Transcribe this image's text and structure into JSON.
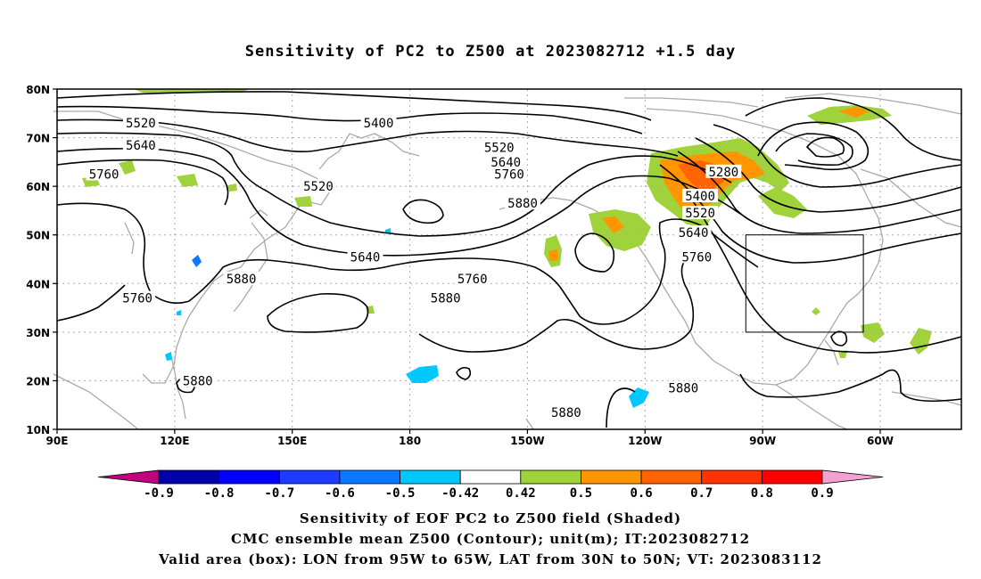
{
  "title": "Sensitivity of PC2 to Z500 at 2023082712 +1.5 day",
  "map": {
    "lat_ticks": [
      "80N",
      "70N",
      "60N",
      "50N",
      "40N",
      "30N",
      "20N",
      "10N"
    ],
    "lon_ticks": [
      "90E",
      "120E",
      "150E",
      "180",
      "150W",
      "120W",
      "90W",
      "60W"
    ],
    "contour_labels": [
      {
        "text": "5520",
        "lon": 115,
        "lat": 73
      },
      {
        "text": "5400",
        "lon": 186,
        "lat": 73
      },
      {
        "text": "5640",
        "lon": 115,
        "lat": 68.5
      },
      {
        "text": "5520",
        "lon": 222,
        "lat": 68
      },
      {
        "text": "5640",
        "lon": 224,
        "lat": 65
      },
      {
        "text": "5760",
        "lon": 104,
        "lat": 62.5
      },
      {
        "text": "5760",
        "lon": 225,
        "lat": 62.5
      },
      {
        "text": "5520",
        "lon": 168,
        "lat": 60
      },
      {
        "text": "5880",
        "lon": 229,
        "lat": 56.5
      },
      {
        "text": "5280",
        "lon": 289,
        "lat": 63
      },
      {
        "text": "5400",
        "lon": 282,
        "lat": 58
      },
      {
        "text": "5520",
        "lon": 282,
        "lat": 54.5
      },
      {
        "text": "5640",
        "lon": 280,
        "lat": 50.5
      },
      {
        "text": "5760",
        "lon": 281,
        "lat": 45.5
      },
      {
        "text": "5640",
        "lon": 182,
        "lat": 45.5
      },
      {
        "text": "5760",
        "lon": 214,
        "lat": 41
      },
      {
        "text": "5880",
        "lon": 145,
        "lat": 41
      },
      {
        "text": "5880",
        "lon": 206,
        "lat": 37
      },
      {
        "text": "5760",
        "lon": 114,
        "lat": 37
      },
      {
        "text": "5880",
        "lon": 132,
        "lat": 20
      },
      {
        "text": "5880",
        "lon": 277,
        "lat": 18.5
      },
      {
        "text": "5880",
        "lon": 242,
        "lat": 13.5
      }
    ],
    "box": {
      "lon_from": "95W",
      "lon_to": "65W",
      "lat_from": "30N",
      "lat_to": "50N"
    }
  },
  "colorbar": {
    "labels": [
      "-0.9",
      "-0.8",
      "-0.7",
      "-0.6",
      "-0.5",
      "-0.42",
      "0.42",
      "0.5",
      "0.6",
      "0.7",
      "0.8",
      "0.9"
    ],
    "colors": [
      "#c0007e",
      "#0000a8",
      "#0000ff",
      "#1e3cff",
      "#0a78ff",
      "#00c8ff",
      "#ffffff",
      "#a0d23c",
      "#ff9600",
      "#ff6400",
      "#ff3200",
      "#ff0000",
      "#f5a0d2"
    ]
  },
  "captions": {
    "line1": "Sensitivity of EOF PC2 to Z500 field (Shaded)",
    "line2": "CMC ensemble mean Z500 (Contour); unit(m); IT:2023082712",
    "line3": "Valid area (box): LON from 95W to 65W, LAT from 30N to 50N; VT: 2023083112"
  }
}
